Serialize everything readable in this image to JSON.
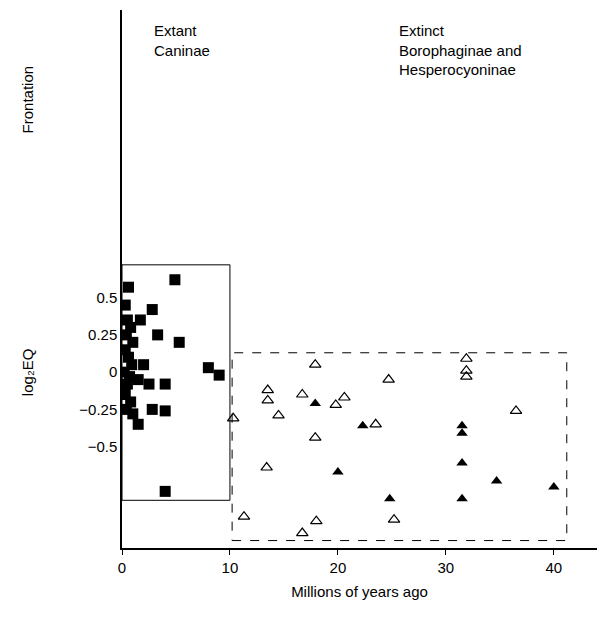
{
  "chart_data": {
    "type": "scatter",
    "xlabel": "Millions of years ago",
    "ylabel": "log₂EQ",
    "upper_label": {
      "text": "Frontation",
      "y": 1.83
    },
    "xlim": [
      0,
      44
    ],
    "xticks": [
      0,
      10,
      20,
      30,
      40
    ],
    "ylim": [
      -1.18,
      2.43
    ],
    "yticks": [
      {
        "value": -0.5,
        "label": "−0.5"
      },
      {
        "value": -0.25,
        "label": "−0.25"
      },
      0,
      0.25,
      0.5
    ],
    "grid": false,
    "tick_labels": true,
    "groups": [
      {
        "lines": [
          "Extant",
          "Caninae"
        ],
        "label_x": 2.8,
        "label_y": 2.36,
        "box_x": [
          0,
          10
        ],
        "box_y": [
          -0.86,
          0.72
        ],
        "line_style": "solid"
      },
      {
        "lines": [
          "Extinct",
          "Borophaginae and",
          "Hesperocyoninae"
        ],
        "label_x": 25.5,
        "label_y": 2.36,
        "box_x": [
          10.2,
          41.2
        ],
        "box_y": [
          -1.13,
          0.13
        ],
        "line_style": "dash"
      }
    ],
    "series": [
      {
        "marker": "square",
        "color": "#000000",
        "x": [
          0.3,
          0.5,
          0.8,
          0.4,
          1.0,
          0.3,
          0.6,
          0.9,
          0.2,
          0.7,
          0.5,
          0.3,
          0.8,
          0.4,
          1.0,
          4.9,
          0.6,
          2.8,
          1.7,
          3.3,
          5.3,
          2.0,
          1.5,
          2.5,
          4.0,
          8.0,
          9.0,
          2.8,
          4.0,
          1.5,
          4.0
        ],
        "y": [
          0.45,
          0.35,
          0.3,
          0.25,
          0.2,
          0.15,
          0.1,
          0.05,
          0.0,
          -0.03,
          -0.08,
          -0.15,
          -0.2,
          -0.25,
          -0.28,
          0.62,
          0.57,
          0.42,
          0.35,
          0.25,
          0.2,
          0.05,
          -0.05,
          -0.08,
          -0.08,
          0.03,
          -0.02,
          -0.25,
          -0.26,
          -0.35,
          -0.8
        ]
      },
      {
        "marker": "triangle-up-open",
        "color": "#000000",
        "x": [
          10.3,
          11.3,
          13.5,
          13.5,
          13.4,
          14.5,
          16.7,
          17.9,
          17.9,
          18.0,
          16.7,
          19.8,
          20.6,
          23.5,
          25.2,
          24.7,
          31.9,
          31.9,
          31.9,
          36.5
        ],
        "y": [
          -0.31,
          -0.97,
          -0.12,
          -0.19,
          -0.64,
          -0.29,
          -0.15,
          0.05,
          -0.44,
          -1.0,
          -1.08,
          -0.22,
          -0.17,
          -0.35,
          -0.99,
          -0.05,
          0.09,
          0.01,
          -0.03,
          -0.26
        ]
      },
      {
        "marker": "triangle-up",
        "color": "#000000",
        "x": [
          17.9,
          20.0,
          22.3,
          24.8,
          31.5,
          31.5,
          31.5,
          31.5,
          34.7,
          40.0
        ],
        "y": [
          -0.21,
          -0.67,
          -0.36,
          -0.85,
          -0.36,
          -0.41,
          -0.61,
          -0.85,
          -0.73,
          -0.77
        ]
      }
    ]
  }
}
